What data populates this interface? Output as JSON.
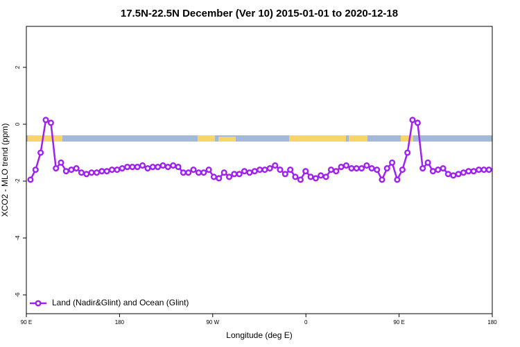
{
  "chart_data": {
    "type": "line",
    "title": "17.5N-22.5N December (Ver 10)   2015-01-01 to 2020-12-18",
    "x_label": "Longitude (deg E)",
    "y_label": "XCO2 - MLO trend (ppm)",
    "xlim": [
      90,
      540
    ],
    "ylim": [
      -6.66,
      3.44
    ],
    "xticks": [
      {
        "value": 90,
        "label": "90 E"
      },
      180,
      {
        "value": 270,
        "label": "90 W"
      },
      {
        "value": 360,
        "label": "0"
      },
      {
        "value": 450,
        "label": "90 E"
      },
      {
        "value": 540,
        "label": "180"
      }
    ],
    "yticks": [
      2,
      0,
      -2,
      -4,
      -6
    ],
    "legend": "bottomleft",
    "x": [
      94.0,
      98.9,
      103.8,
      108.8,
      113.7,
      118.6,
      123.5,
      128.4,
      133.4,
      138.3,
      143.2,
      148.1,
      153.0,
      158.0,
      162.9,
      167.8,
      172.7,
      177.6,
      182.6,
      187.5,
      192.4,
      197.3,
      202.2,
      207.2,
      212.1,
      217.0,
      221.9,
      226.8,
      231.8,
      236.7,
      241.6,
      246.5,
      251.4,
      256.4,
      261.3,
      266.2,
      271.1,
      276.0,
      281.0,
      285.9,
      290.8,
      295.7,
      300.6,
      305.6,
      310.5,
      315.4,
      320.3,
      325.2,
      330.2,
      335.1,
      340.0,
      344.9,
      349.8,
      354.8,
      359.7,
      364.6,
      369.5,
      374.4,
      379.4,
      384.3,
      389.2,
      394.1,
      399.0,
      404.0,
      408.9,
      413.8,
      418.7,
      423.6,
      428.6,
      433.5,
      438.4,
      443.3,
      448.2,
      453.2,
      458.1,
      463.0,
      467.9,
      472.8,
      477.8,
      482.7,
      487.6,
      492.5,
      497.4,
      502.4,
      507.3,
      512.2,
      517.1,
      522.0,
      527.0,
      531.9,
      536.8
    ],
    "series": [
      {
        "name": "Land (Nadir&Glint) and Ocean (Glint)",
        "color": "#a020f0",
        "values": [
          -1.95,
          -1.6,
          -1.0,
          0.15,
          0.05,
          -1.55,
          -1.35,
          -1.65,
          -1.6,
          -1.55,
          -1.7,
          -1.75,
          -1.7,
          -1.7,
          -1.65,
          -1.65,
          -1.6,
          -1.6,
          -1.55,
          -1.5,
          -1.5,
          -1.5,
          -1.45,
          -1.55,
          -1.5,
          -1.5,
          -1.45,
          -1.5,
          -1.45,
          -1.5,
          -1.7,
          -1.7,
          -1.6,
          -1.7,
          -1.7,
          -1.6,
          -1.85,
          -1.9,
          -1.7,
          -1.85,
          -1.75,
          -1.75,
          -1.65,
          -1.7,
          -1.65,
          -1.6,
          -1.6,
          -1.55,
          -1.45,
          -1.6,
          -1.75,
          -1.6,
          -1.85,
          -1.95,
          -1.65,
          -1.85,
          -1.9,
          -1.8,
          -1.85,
          -1.6,
          -1.65,
          -1.5,
          -1.45,
          -1.55,
          -1.55,
          -1.55,
          -1.45,
          -1.55,
          -1.6,
          -1.95,
          -1.55,
          -1.35,
          -1.95,
          -1.6,
          -1.0,
          0.15,
          0.05,
          -1.55,
          -1.35,
          -1.65,
          -1.6,
          -1.55,
          -1.75,
          -1.8,
          -1.75,
          -1.7,
          -1.65,
          -1.65,
          -1.6,
          -1.6,
          -1.6
        ]
      }
    ]
  }
}
